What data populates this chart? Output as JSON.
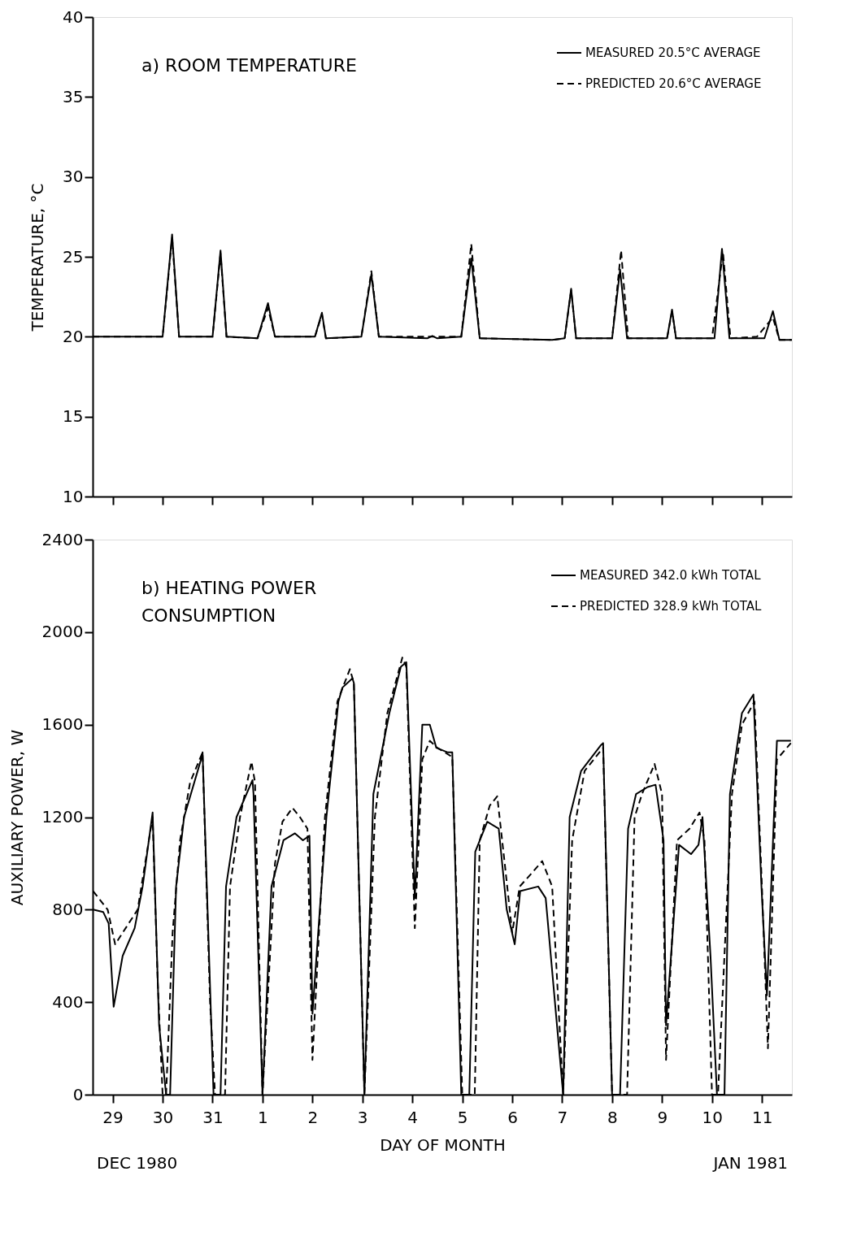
{
  "chart_data": [
    {
      "type": "line",
      "ylabel": "TEMPERATURE, °C",
      "xlim": [
        "1980-12-29T02:24",
        "1981-01-12T02:24"
      ],
      "ylim": [
        10,
        40
      ],
      "yticks": [
        10,
        15,
        20,
        25,
        30,
        35,
        40
      ],
      "xticks": [
        "1980-12-29T12:00",
        "1980-12-30T12:00",
        "1980-12-31T12:00",
        "1981-01-01T12:00",
        "1981-01-02T12:00",
        "1981-01-03T12:00",
        "1981-01-04T12:00",
        "1981-01-05T12:00",
        "1981-01-06T12:00",
        "1981-01-07T12:00",
        "1981-01-08T12:00",
        "1981-01-09T12:00",
        "1981-01-10T12:00",
        "1981-01-11T12:00"
      ],
      "tick_labels": "y",
      "grid": false,
      "legend": "top right",
      "marker": "none",
      "annotations": [
        "a) ROOM TEMPERATURE"
      ],
      "series": [
        {
          "name": "MEASURED   20.5°C AVERAGE",
          "color": "#000000",
          "line_style": "solid",
          "x": [
            "1980-12-29T02:24",
            "1980-12-30T12:00",
            "1980-12-30T16:34",
            "1980-12-30T19:55",
            "1980-12-31T12:00",
            "1980-12-31T15:50",
            "1980-12-31T18:43",
            "1981-01-01T09:36",
            "1981-01-01T14:38",
            "1981-01-01T18:00",
            "1981-01-02T13:12",
            "1981-01-02T16:34",
            "1981-01-02T18:29",
            "1981-01-03T11:31",
            "1981-01-03T16:19",
            "1981-01-03T19:55",
            "1981-01-04T19:12",
            "1981-01-04T21:36",
            "1981-01-05T00:00",
            "1981-01-05T11:31",
            "1981-01-05T16:19",
            "1981-01-05T20:24",
            "1981-01-07T07:12",
            "1981-01-07T13:12",
            "1981-01-07T16:19",
            "1981-01-07T18:43",
            "1981-01-08T12:00",
            "1981-01-08T15:50",
            "1981-01-08T19:12",
            "1981-01-09T14:24",
            "1981-01-09T16:48",
            "1981-01-09T18:43",
            "1981-01-10T13:12",
            "1981-01-10T16:48",
            "1981-01-10T20:24",
            "1981-01-11T13:12",
            "1981-01-11T17:17",
            "1981-01-11T20:24",
            "1981-01-12T02:24"
          ],
          "values": [
            20,
            20,
            26.4,
            20,
            20,
            25.4,
            20,
            19.9,
            22.1,
            20,
            20,
            21.5,
            19.9,
            20,
            23.9,
            20,
            19.9,
            20.05,
            19.9,
            20,
            24.9,
            19.9,
            19.8,
            19.9,
            23.0,
            19.9,
            19.9,
            24.2,
            19.9,
            19.9,
            21.7,
            19.9,
            19.9,
            25.5,
            19.9,
            19.9,
            21.6,
            19.8,
            19.8
          ]
        },
        {
          "name": "PREDICTED   20.6°C AVERAGE",
          "color": "#000000",
          "line_style": "dashed",
          "x": [
            "1980-12-29T02:24",
            "1980-12-30T12:00",
            "1980-12-30T16:34",
            "1980-12-30T19:55",
            "1980-12-31T12:00",
            "1980-12-31T15:50",
            "1980-12-31T18:43",
            "1981-01-01T09:36",
            "1981-01-01T14:38",
            "1981-01-01T18:00",
            "1981-01-02T13:12",
            "1981-01-02T16:34",
            "1981-01-02T18:29",
            "1981-01-03T11:31",
            "1981-01-03T16:19",
            "1981-01-03T19:55",
            "1981-01-05T11:31",
            "1981-01-05T16:19",
            "1981-01-05T20:24",
            "1981-01-07T07:12",
            "1981-01-07T13:12",
            "1981-01-07T16:19",
            "1981-01-07T18:43",
            "1981-01-08T12:00",
            "1981-01-08T16:19",
            "1981-01-08T19:41",
            "1981-01-09T14:24",
            "1981-01-09T16:48",
            "1981-01-09T18:43",
            "1981-01-10T12:00",
            "1981-01-10T17:17",
            "1981-01-10T20:53",
            "1981-01-11T09:36",
            "1981-01-11T17:17",
            "1981-01-11T20:24",
            "1981-01-12T02:24"
          ],
          "values": [
            20,
            20,
            26.2,
            20,
            20,
            25.2,
            20,
            19.9,
            21.8,
            20,
            20,
            21.4,
            19.9,
            20,
            24.1,
            20,
            20,
            25.8,
            19.9,
            19.8,
            19.9,
            22.9,
            19.9,
            19.9,
            25.4,
            19.9,
            19.9,
            21.6,
            19.9,
            19.9,
            25.3,
            19.9,
            20,
            21.2,
            19.8,
            19.8
          ]
        }
      ]
    },
    {
      "type": "line",
      "xlabel": "DAY OF MONTH",
      "ylabel": "AUXILIARY POWER, W",
      "xlim": [
        "1980-12-29T02:24",
        "1981-01-12T02:24"
      ],
      "ylim": [
        0,
        2400
      ],
      "yticks": [
        0,
        400,
        800,
        1200,
        1600,
        2000,
        2400
      ],
      "xticks": [
        {
          "value": "1980-12-29T12:00",
          "label": "29"
        },
        {
          "value": "1980-12-30T12:00",
          "label": "30"
        },
        {
          "value": "1980-12-31T12:00",
          "label": "31"
        },
        {
          "value": "1981-01-01T12:00",
          "label": "1"
        },
        {
          "value": "1981-01-02T12:00",
          "label": "2"
        },
        {
          "value": "1981-01-03T12:00",
          "label": "3"
        },
        {
          "value": "1981-01-04T12:00",
          "label": "4"
        },
        {
          "value": "1981-01-05T12:00",
          "label": "5"
        },
        {
          "value": "1981-01-06T12:00",
          "label": "6"
        },
        {
          "value": "1981-01-07T12:00",
          "label": "7"
        },
        {
          "value": "1981-01-08T12:00",
          "label": "8"
        },
        {
          "value": "1981-01-09T12:00",
          "label": "9"
        },
        {
          "value": "1981-01-10T12:00",
          "label": "10"
        },
        {
          "value": "1981-01-11T12:00",
          "label": "11"
        }
      ],
      "grid": false,
      "legend": "top right",
      "marker": "none",
      "annotations": [
        "b) HEATING POWER\nCONSUMPTION",
        "DEC 1980",
        "JAN 1981"
      ],
      "series": [
        {
          "name": "MEASURED   342.0 kWh TOTAL",
          "color": "#000000",
          "line_style": "solid",
          "x": [
            "1980-12-29T02:38",
            "1980-12-29T07:26",
            "1980-12-29T10:05",
            "1980-12-29T12:29",
            "1980-12-29T16:48",
            "1980-12-29T22:34",
            "1980-12-30T02:24",
            "1980-12-30T07:12",
            "1980-12-30T10:19",
            "1980-12-30T13:41",
            "1980-12-30T15:36",
            "1980-12-30T18:29",
            "1980-12-30T22:19",
            "1980-12-31T06:29",
            "1980-12-31T07:12",
            "1980-12-31T10:19",
            "1980-12-31T12:29",
            "1980-12-31T15:50",
            "1980-12-31T18:29",
            "1980-12-31T23:31",
            "1981-01-01T07:12",
            "1981-01-01T07:41",
            "1981-01-01T12:00",
            "1981-01-01T16:19",
            "1981-01-01T22:05",
            "1981-01-02T03:36",
            "1981-01-02T07:26",
            "1981-01-02T10:34",
            "1981-01-02T12:00",
            "1981-01-02T18:43",
            "1981-01-03T00:29",
            "1981-01-03T02:24",
            "1981-01-03T07:12",
            "1981-01-03T07:55",
            "1981-01-03T12:58",
            "1981-01-03T17:17",
            "1981-01-04T00:58",
            "1981-01-04T06:29",
            "1981-01-04T09:07",
            "1981-01-04T13:12",
            "1981-01-04T16:48",
            "1981-01-04T20:24",
            "1981-01-04T23:31",
            "1981-01-05T05:02",
            "1981-01-05T07:12",
            "1981-01-05T11:31",
            "1981-01-05T15:22",
            "1981-01-05T18:14",
            "1981-01-06T00:00",
            "1981-01-06T05:31",
            "1981-01-06T09:22",
            "1981-01-06T13:12",
            "1981-01-06T15:50",
            "1981-01-07T00:29",
            "1981-01-07T04:05",
            "1981-01-07T12:29",
            "1981-01-07T15:36",
            "1981-01-07T21:07",
            "1981-01-08T06:29",
            "1981-01-08T07:41",
            "1981-01-08T12:00",
            "1981-01-08T15:50",
            "1981-01-08T19:41",
            "1981-01-08T23:31",
            "1981-01-09T05:02",
            "1981-01-09T08:53",
            "1981-01-09T12:43",
            "1981-01-09T13:55",
            "1981-01-09T20:10",
            "1981-01-10T01:55",
            "1981-01-10T05:31",
            "1981-01-10T07:26",
            "1981-01-10T11:17",
            "1981-01-10T14:24",
            "1981-01-10T18:00",
            "1981-01-10T20:38",
            "1981-01-11T02:24",
            "1981-01-11T07:12",
            "1981-01-11T07:55",
            "1981-01-11T11:46",
            "1981-01-11T14:24",
            "1981-01-11T19:12",
            "1981-01-12T01:55"
          ],
          "values": [
            800,
            790,
            740,
            380,
            600,
            720,
            900,
            1220,
            300,
            0,
            0,
            900,
            1200,
            1450,
            1480,
            600,
            0,
            0,
            900,
            1200,
            1360,
            1300,
            0,
            900,
            1100,
            1130,
            1100,
            1120,
            350,
            1200,
            1700,
            1760,
            1800,
            1780,
            0,
            1300,
            1650,
            1850,
            1870,
            850,
            1600,
            1600,
            1500,
            1480,
            1480,
            0,
            0,
            1050,
            1180,
            1150,
            800,
            650,
            880,
            900,
            850,
            0,
            1200,
            1400,
            1510,
            1520,
            0,
            0,
            1150,
            1300,
            1330,
            1340,
            1100,
            300,
            1080,
            1040,
            1080,
            1200,
            600,
            0,
            0,
            1300,
            1650,
            1720,
            1730,
            900,
            430,
            1530,
            1530
          ]
        },
        {
          "name": "PREDICTED   328.9 kWh TOTAL",
          "color": "#000000",
          "line_style": "dashed",
          "x": [
            "1980-12-29T02:38",
            "1980-12-29T09:36",
            "1980-12-29T13:12",
            "1980-12-29T16:48",
            "1980-12-30T00:00",
            "1980-12-30T07:12",
            "1980-12-30T09:36",
            "1980-12-30T12:00",
            "1980-12-30T13:41",
            "1980-12-30T16:48",
            "1980-12-30T20:24",
            "1980-12-31T01:12",
            "1980-12-31T07:12",
            "1980-12-31T10:48",
            "1980-12-31T13:12",
            "1980-12-31T18:00",
            "1980-12-31T20:24",
            "1981-01-01T01:12",
            "1981-01-01T06:43",
            "1981-01-01T08:24",
            "1981-01-01T12:00",
            "1981-01-01T18:00",
            "1981-01-01T21:36",
            "1981-01-02T02:24",
            "1981-01-02T06:00",
            "1981-01-02T09:36",
            "1981-01-02T12:00",
            "1981-01-02T18:00",
            "1981-01-03T00:00",
            "1981-01-03T06:00",
            "1981-01-03T07:55",
            "1981-01-03T12:58",
            "1981-01-03T18:00",
            "1981-01-04T00:00",
            "1981-01-04T07:12",
            "1981-01-04T09:07",
            "1981-01-04T13:12",
            "1981-01-04T16:48",
            "1981-01-04T20:24",
            "1981-01-05T00:00",
            "1981-01-05T07:12",
            "1981-01-05T12:00",
            "1981-01-05T18:00",
            "1981-01-05T20:24",
            "1981-01-06T01:12",
            "1981-01-06T04:48",
            "1981-01-06T08:24",
            "1981-01-06T12:00",
            "1981-01-06T15:36",
            "1981-01-06T21:36",
            "1981-01-07T02:24",
            "1981-01-07T07:12",
            "1981-01-07T12:29",
            "1981-01-07T16:48",
            "1981-01-07T22:48",
            "1981-01-08T07:41",
            "1981-01-08T12:00",
            "1981-01-08T19:12",
            "1981-01-08T22:48",
            "1981-01-09T02:24",
            "1981-01-09T08:24",
            "1981-01-09T12:00",
            "1981-01-09T13:55",
            "1981-01-09T19:12",
            "1981-01-10T01:12",
            "1981-01-10T06:00",
            "1981-01-10T08:24",
            "1981-01-10T12:00",
            "1981-01-10T14:53",
            "1981-01-10T21:36",
            "1981-01-11T02:24",
            "1981-01-11T08:24",
            "1981-01-11T12:00",
            "1981-01-11T14:53",
            "1981-01-11T19:12",
            "1981-01-12T01:55"
          ],
          "values": [
            880,
            800,
            650,
            700,
            800,
            1200,
            500,
            0,
            0,
            700,
            1100,
            1350,
            1480,
            400,
            0,
            0,
            900,
            1200,
            1440,
            1350,
            0,
            1000,
            1180,
            1240,
            1200,
            1150,
            150,
            1200,
            1700,
            1840,
            1780,
            0,
            1200,
            1650,
            1890,
            1850,
            720,
            1450,
            1530,
            1500,
            1460,
            0,
            0,
            1100,
            1250,
            1290,
            1000,
            700,
            900,
            960,
            1010,
            900,
            0,
            1100,
            1400,
            1500,
            0,
            0,
            1200,
            1300,
            1430,
            1300,
            150,
            1100,
            1150,
            1220,
            1100,
            0,
            0,
            1300,
            1600,
            1700,
            900,
            200,
            1450,
            1520
          ]
        }
      ]
    }
  ]
}
